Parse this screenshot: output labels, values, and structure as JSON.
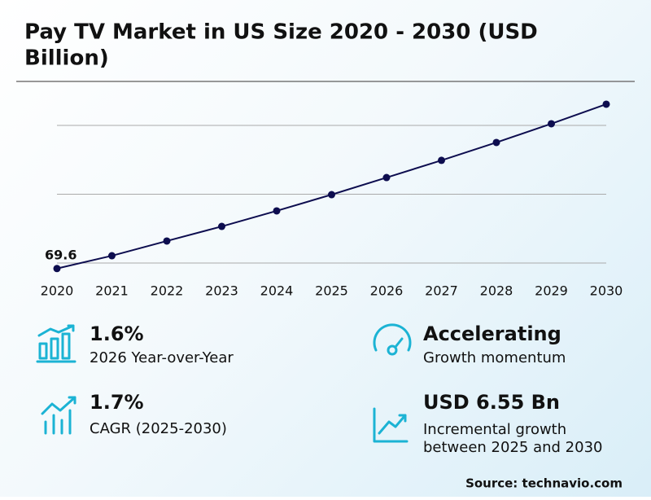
{
  "chart_data": {
    "type": "line",
    "title_lines": [
      "Pay TV Market in US Size 2020 - 2030 (USD",
      "Billion)"
    ],
    "categories": [
      "2020",
      "2021",
      "2022",
      "2023",
      "2024",
      "2025",
      "2026",
      "2027",
      "2028",
      "2029",
      "2030"
    ],
    "values": [
      69.6,
      70.53,
      71.6,
      72.66,
      73.79,
      74.97,
      76.21,
      77.46,
      78.76,
      80.12,
      81.54
    ],
    "color": "#0d0d4f",
    "ylim": [
      69,
      82
    ],
    "yticks": [
      70,
      75,
      80
    ],
    "grid": true
  },
  "stats": [
    {
      "value": "1.6%",
      "label": [
        "2026 Year-over-Year"
      ]
    },
    {
      "value": "Accelerating",
      "label": [
        "Growth momentum"
      ]
    },
    {
      "value": "1.7%",
      "label": [
        "CAGR (2025-2030)"
      ]
    },
    {
      "value": "USD 6.55 Bn",
      "label": [
        "Incremental growth",
        "between 2025 and 2030"
      ]
    }
  ],
  "source": "Source: technavio.com"
}
